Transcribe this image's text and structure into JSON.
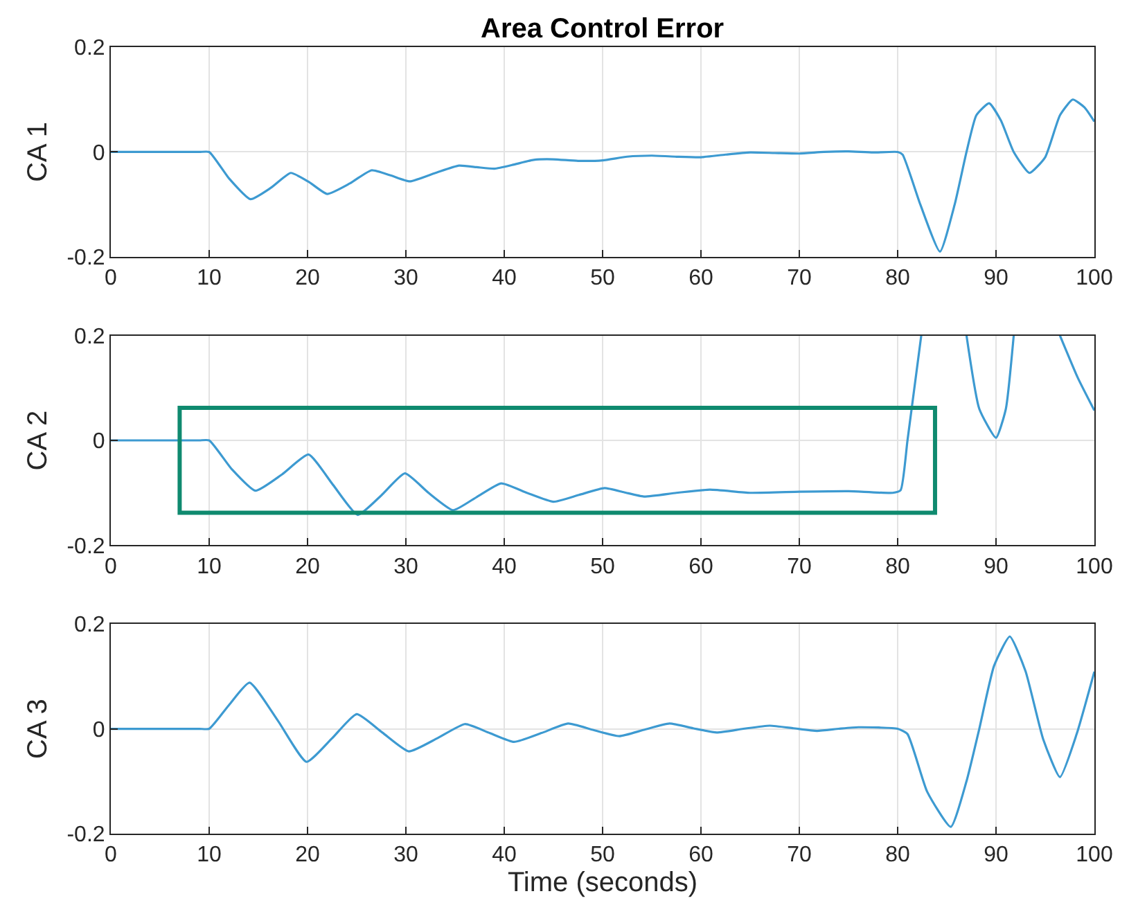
{
  "chart_data": [
    {
      "type": "line",
      "title": "Area Control Error",
      "ylabel": "CA 1",
      "color": "#3d9ad1",
      "line_style": "solid",
      "grid": true,
      "xlim": [
        0,
        100
      ],
      "xticks": [
        0,
        10,
        20,
        30,
        40,
        50,
        60,
        70,
        80,
        90,
        100
      ],
      "ylim": [
        -0.2,
        0.2
      ],
      "yticks": [
        -0.2,
        0,
        0.2
      ],
      "x": [
        0,
        5,
        9,
        10,
        12,
        14.2,
        16.3,
        18.3,
        20.2,
        22,
        24.3,
        26.5,
        28.5,
        30.4,
        33,
        35.4,
        37.2,
        39,
        41,
        43,
        45,
        47.5,
        50,
        52.5,
        55,
        57.5,
        60,
        62.5,
        65,
        67.5,
        70,
        72.5,
        75,
        77.5,
        80,
        80.5,
        82.3,
        84.3,
        85.8,
        87,
        88,
        89.3,
        90.5,
        91.8,
        93.4,
        95,
        96.5,
        97.8,
        99,
        100
      ],
      "values": [
        0,
        0,
        0,
        0,
        -0.05,
        -0.09,
        -0.068,
        -0.04,
        -0.058,
        -0.08,
        -0.06,
        -0.035,
        -0.045,
        -0.056,
        -0.04,
        -0.026,
        -0.029,
        -0.032,
        -0.024,
        -0.015,
        -0.014,
        -0.017,
        -0.016,
        -0.009,
        -0.007,
        -0.009,
        -0.01,
        -0.005,
        -0.001,
        -0.002,
        -0.003,
        0,
        0.001,
        -0.001,
        0,
        -0.005,
        -0.1,
        -0.19,
        -0.1,
        0,
        0.07,
        0.093,
        0.06,
        0,
        -0.04,
        -0.01,
        0.07,
        0.1,
        0.085,
        0.058
      ]
    },
    {
      "type": "line",
      "ylabel": "CA 2",
      "color": "#3d9ad1",
      "line_style": "solid",
      "grid": true,
      "xlim": [
        0,
        100
      ],
      "xticks": [
        0,
        10,
        20,
        30,
        40,
        50,
        60,
        70,
        80,
        90,
        100
      ],
      "ylim": [
        -0.2,
        0.2
      ],
      "yticks": [
        -0.2,
        0,
        0.2
      ],
      "x": [
        0,
        5,
        9,
        10,
        12.3,
        14.7,
        17.4,
        20.1,
        22.6,
        25.1,
        27.5,
        29.9,
        32.3,
        34.8,
        37.2,
        39.7,
        42.3,
        45,
        47.6,
        50.2,
        52.2,
        54.2,
        57.5,
        60.9,
        65,
        70,
        75,
        79.5,
        80.3,
        81,
        82.4,
        84.5,
        87,
        88.3,
        90,
        91,
        91.8,
        94,
        96.5,
        98.3,
        100
      ],
      "values": [
        0,
        0,
        0,
        0,
        -0.055,
        -0.096,
        -0.065,
        -0.027,
        -0.085,
        -0.142,
        -0.105,
        -0.063,
        -0.1,
        -0.133,
        -0.108,
        -0.082,
        -0.1,
        -0.117,
        -0.104,
        -0.091,
        -0.099,
        -0.107,
        -0.1,
        -0.094,
        -0.1,
        -0.098,
        -0.097,
        -0.1,
        -0.095,
        0,
        0.2,
        null,
        0.2,
        0.06,
        0.005,
        0.06,
        0.2,
        null,
        0.2,
        0.12,
        0.057
      ]
    },
    {
      "type": "line",
      "ylabel": "CA 3",
      "xlabel": "Time (seconds)",
      "color": "#3d9ad1",
      "line_style": "solid",
      "grid": true,
      "xlim": [
        0,
        100
      ],
      "xticks": [
        0,
        10,
        20,
        30,
        40,
        50,
        60,
        70,
        80,
        90,
        100
      ],
      "ylim": [
        -0.2,
        0.2
      ],
      "yticks": [
        -0.2,
        0,
        0.2
      ],
      "x": [
        0,
        5,
        9,
        10,
        12,
        14.1,
        17,
        19.9,
        22.5,
        25,
        27.6,
        30.3,
        33.2,
        36,
        38.5,
        41,
        43.8,
        46.5,
        49,
        51.7,
        54.2,
        56.8,
        59.2,
        61.6,
        64.3,
        67,
        69.4,
        71.8,
        74,
        76,
        80,
        81,
        83,
        85.4,
        87,
        88.3,
        89.8,
        91.4,
        93,
        94.8,
        96.5,
        98.2,
        100
      ],
      "values": [
        0,
        0,
        0,
        0,
        0.045,
        0.088,
        0.015,
        -0.063,
        -0.018,
        0.028,
        -0.007,
        -0.043,
        -0.018,
        0.009,
        -0.008,
        -0.025,
        -0.008,
        0.01,
        -0.002,
        -0.014,
        -0.002,
        0.01,
        0.001,
        -0.007,
        0,
        0.006,
        0.001,
        -0.004,
        0,
        0.003,
        0,
        -0.01,
        -0.12,
        -0.187,
        -0.1,
        0,
        0.12,
        0.176,
        0.11,
        -0.02,
        -0.092,
        -0.01,
        0.109
      ]
    }
  ]
}
